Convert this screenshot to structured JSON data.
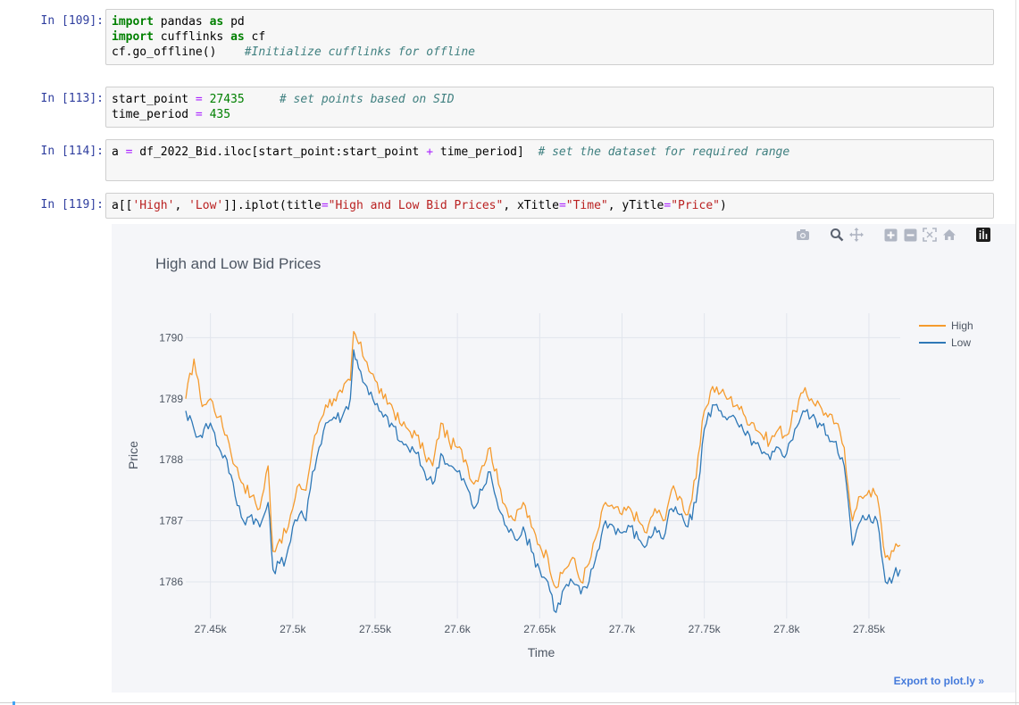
{
  "cells": [
    {
      "prompt": "In [109]:",
      "lines": [
        [
          {
            "t": "import",
            "c": "kw"
          },
          {
            "t": " pandas "
          },
          {
            "t": "as",
            "c": "kw"
          },
          {
            "t": " pd"
          }
        ],
        [
          {
            "t": "import",
            "c": "kw"
          },
          {
            "t": " cufflinks "
          },
          {
            "t": "as",
            "c": "kw"
          },
          {
            "t": " cf"
          }
        ],
        [
          {
            "t": "cf.go_offline()    "
          },
          {
            "t": "#Initialize cufflinks for offline",
            "c": "cm"
          }
        ]
      ]
    },
    {
      "prompt": "In [113]:",
      "lines": [
        [
          {
            "t": "start_point "
          },
          {
            "t": "=",
            "c": "op"
          },
          {
            "t": " "
          },
          {
            "t": "27435",
            "c": "num"
          },
          {
            "t": "     "
          },
          {
            "t": "# set points based on SID",
            "c": "cm"
          }
        ],
        [
          {
            "t": "time_period "
          },
          {
            "t": "=",
            "c": "op"
          },
          {
            "t": " "
          },
          {
            "t": "435",
            "c": "num"
          }
        ]
      ]
    },
    {
      "prompt": "In [114]:",
      "lines": [
        [
          {
            "t": "a "
          },
          {
            "t": "=",
            "c": "op"
          },
          {
            "t": " df_2022_Bid.iloc[start_point:start_point "
          },
          {
            "t": "+",
            "c": "op"
          },
          {
            "t": " time_period]  "
          },
          {
            "t": "# set the dataset for required range",
            "c": "cm"
          }
        ]
      ]
    },
    {
      "prompt": "In [119]:",
      "lines": [
        [
          {
            "t": "a[["
          },
          {
            "t": "'High'",
            "c": "str"
          },
          {
            "t": ", "
          },
          {
            "t": "'Low'",
            "c": "str"
          },
          {
            "t": "]].iplot(title"
          },
          {
            "t": "=",
            "c": "op"
          },
          {
            "t": "\"High and Low Bid Prices\"",
            "c": "str"
          },
          {
            "t": ", xTitle"
          },
          {
            "t": "=",
            "c": "op"
          },
          {
            "t": "\"Time\"",
            "c": "str"
          },
          {
            "t": ", yTitle"
          },
          {
            "t": "=",
            "c": "op"
          },
          {
            "t": "\"Price\"",
            "c": "str"
          },
          {
            "t": ")"
          }
        ]
      ]
    }
  ],
  "modebar": {
    "icons": [
      "camera-icon",
      "zoom-icon",
      "pan-icon",
      "zoom-in-icon",
      "zoom-out-icon",
      "autoscale-icon",
      "home-icon",
      "plotly-logo-icon"
    ]
  },
  "export_label": "Export to plot.ly »",
  "colors": {
    "high": "#f59b2e",
    "low": "#2e78b7",
    "grid": "#e1e5ed",
    "text": "#4d5663"
  },
  "chart_data": {
    "type": "line",
    "title": "High and Low Bid Prices",
    "xlabel": "Time",
    "ylabel": "Price",
    "xlim": [
      27435,
      27869
    ],
    "ylim": [
      1785.4,
      1790.4
    ],
    "xticks": [
      27450,
      27500,
      27550,
      27600,
      27650,
      27700,
      27750,
      27800,
      27850
    ],
    "xtick_labels": [
      "27.45k",
      "27.5k",
      "27.55k",
      "27.6k",
      "27.65k",
      "27.7k",
      "27.75k",
      "27.8k",
      "27.85k"
    ],
    "yticks": [
      1786,
      1787,
      1788,
      1789,
      1790
    ],
    "ytick_labels": [
      "1786",
      "1787",
      "1788",
      "1789",
      "1790"
    ],
    "grid": true,
    "legend_position": "top-right",
    "series": [
      {
        "name": "High",
        "x": [
          27435,
          27440,
          27444,
          27446,
          27450,
          27455,
          27460,
          27465,
          27470,
          27475,
          27480,
          27485,
          27488,
          27492,
          27496,
          27500,
          27504,
          27508,
          27512,
          27516,
          27520,
          27525,
          27530,
          27535,
          27537,
          27540,
          27545,
          27550,
          27555,
          27560,
          27565,
          27570,
          27575,
          27580,
          27585,
          27590,
          27595,
          27600,
          27605,
          27610,
          27615,
          27620,
          27625,
          27630,
          27635,
          27640,
          27645,
          27650,
          27655,
          27660,
          27665,
          27670,
          27675,
          27680,
          27685,
          27690,
          27695,
          27700,
          27705,
          27710,
          27715,
          27720,
          27725,
          27730,
          27735,
          27740,
          27745,
          27750,
          27755,
          27760,
          27765,
          27770,
          27775,
          27780,
          27785,
          27790,
          27795,
          27800,
          27805,
          27810,
          27815,
          27820,
          27825,
          27830,
          27835,
          27840,
          27845,
          27850,
          27855,
          27860,
          27865,
          27869
        ],
        "y": [
          1789.0,
          1789.65,
          1789.0,
          1788.9,
          1789.0,
          1788.7,
          1788.4,
          1787.9,
          1787.6,
          1787.4,
          1787.2,
          1787.9,
          1786.5,
          1786.7,
          1786.8,
          1787.2,
          1787.6,
          1787.5,
          1788.2,
          1788.6,
          1788.9,
          1789.0,
          1789.1,
          1789.3,
          1790.1,
          1789.9,
          1789.6,
          1789.3,
          1789.0,
          1788.9,
          1788.6,
          1788.5,
          1788.4,
          1788.1,
          1787.9,
          1788.6,
          1788.3,
          1788.2,
          1788.0,
          1787.6,
          1787.9,
          1788.2,
          1787.6,
          1787.2,
          1787.0,
          1787.3,
          1786.9,
          1786.6,
          1786.4,
          1785.9,
          1786.2,
          1786.4,
          1786.0,
          1786.3,
          1786.8,
          1787.3,
          1787.2,
          1787.1,
          1787.2,
          1787.0,
          1786.8,
          1787.2,
          1787.0,
          1787.5,
          1787.4,
          1787.1,
          1787.7,
          1788.8,
          1789.2,
          1789.1,
          1789.0,
          1788.9,
          1788.7,
          1788.6,
          1788.4,
          1788.3,
          1788.5,
          1788.4,
          1788.8,
          1789.1,
          1789.0,
          1788.9,
          1788.7,
          1788.6,
          1788.2,
          1787.0,
          1787.4,
          1787.5,
          1787.4,
          1786.4,
          1786.5,
          1786.6
        ]
      },
      {
        "name": "Low",
        "x": [
          27435,
          27440,
          27444,
          27446,
          27450,
          27455,
          27460,
          27465,
          27470,
          27475,
          27480,
          27485,
          27488,
          27492,
          27496,
          27500,
          27504,
          27508,
          27512,
          27516,
          27520,
          27525,
          27530,
          27535,
          27537,
          27540,
          27545,
          27550,
          27555,
          27560,
          27565,
          27570,
          27575,
          27580,
          27585,
          27590,
          27595,
          27600,
          27605,
          27610,
          27615,
          27620,
          27625,
          27630,
          27635,
          27640,
          27645,
          27650,
          27655,
          27660,
          27665,
          27670,
          27675,
          27680,
          27685,
          27690,
          27695,
          27700,
          27705,
          27710,
          27715,
          27720,
          27725,
          27730,
          27735,
          27740,
          27745,
          27750,
          27755,
          27760,
          27765,
          27770,
          27775,
          27780,
          27785,
          27790,
          27795,
          27800,
          27805,
          27810,
          27815,
          27820,
          27825,
          27830,
          27835,
          27840,
          27845,
          27850,
          27855,
          27860,
          27865,
          27869
        ],
        "y": [
          1788.8,
          1788.5,
          1788.4,
          1788.5,
          1788.6,
          1788.2,
          1788.0,
          1787.4,
          1787.0,
          1787.1,
          1786.9,
          1787.3,
          1786.2,
          1786.3,
          1786.4,
          1786.9,
          1787.1,
          1787.0,
          1787.8,
          1788.2,
          1788.6,
          1788.7,
          1788.7,
          1789.0,
          1789.8,
          1789.5,
          1789.2,
          1788.9,
          1788.7,
          1788.6,
          1788.3,
          1788.2,
          1788.1,
          1787.8,
          1787.6,
          1788.1,
          1787.9,
          1787.8,
          1787.6,
          1787.2,
          1787.5,
          1787.8,
          1787.2,
          1786.9,
          1786.7,
          1786.9,
          1786.5,
          1786.2,
          1786.0,
          1785.5,
          1785.9,
          1786.0,
          1785.8,
          1786.0,
          1786.5,
          1787.0,
          1786.9,
          1786.8,
          1786.9,
          1786.7,
          1786.6,
          1786.9,
          1786.7,
          1787.2,
          1787.1,
          1786.9,
          1787.3,
          1788.5,
          1788.9,
          1788.8,
          1788.7,
          1788.6,
          1788.4,
          1788.3,
          1788.1,
          1788.0,
          1788.2,
          1788.1,
          1788.5,
          1788.8,
          1788.7,
          1788.6,
          1788.4,
          1788.3,
          1787.9,
          1786.6,
          1787.0,
          1787.1,
          1787.0,
          1786.0,
          1786.1,
          1786.2
        ]
      }
    ]
  }
}
